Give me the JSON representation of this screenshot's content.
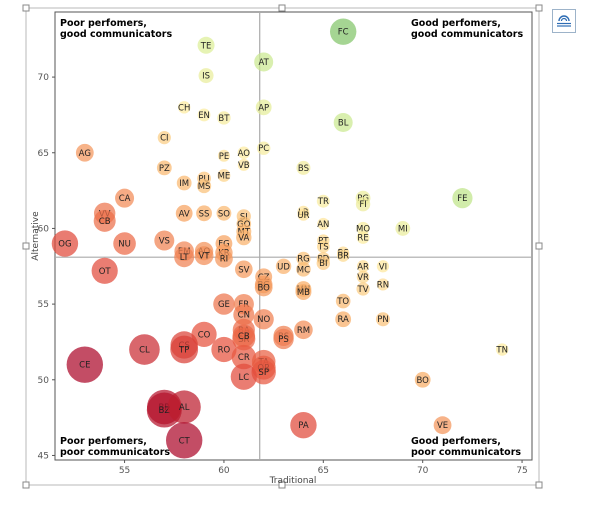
{
  "chart_data": {
    "type": "scatter",
    "xlabel": "Traditional",
    "ylabel": "Alternative",
    "xlim": [
      51.5,
      75.5
    ],
    "ylim": [
      44.7,
      74.3
    ],
    "xticks": [
      "55",
      "60",
      "65",
      "70",
      "75"
    ],
    "yticks": [
      "45",
      "50",
      "55",
      "60",
      "65",
      "70"
    ],
    "divider_x": 61.8,
    "divider_y": 58.1,
    "grid": false,
    "color_scale": "red-yellow-green",
    "quadrant_labels": {
      "top_left": [
        "Poor perfomers,",
        "good communicators"
      ],
      "top_right": [
        "Good perfomers,",
        "good communicators"
      ],
      "bottom_left": [
        "Poor perfomers,",
        "poor communicators"
      ],
      "bottom_right": [
        "Good perfomers,",
        "poor communicators"
      ]
    },
    "points": [
      {
        "label": "TE",
        "x": 59.1,
        "y": 72.1
      },
      {
        "label": "IS",
        "x": 59.1,
        "y": 70.1
      },
      {
        "label": "AT",
        "x": 62.0,
        "y": 71.0
      },
      {
        "label": "FC",
        "x": 66.0,
        "y": 73.0
      },
      {
        "label": "CH",
        "x": 58.0,
        "y": 68.0
      },
      {
        "label": "EN",
        "x": 59.0,
        "y": 67.5
      },
      {
        "label": "BT",
        "x": 60.0,
        "y": 67.3
      },
      {
        "label": "AP",
        "x": 62.0,
        "y": 68.0
      },
      {
        "label": "BL",
        "x": 66.0,
        "y": 67.0
      },
      {
        "label": "AG",
        "x": 53.0,
        "y": 65.0
      },
      {
        "label": "CI",
        "x": 57.0,
        "y": 66.0
      },
      {
        "label": "PE",
        "x": 60.0,
        "y": 64.8
      },
      {
        "label": "AO",
        "x": 61.0,
        "y": 65.0
      },
      {
        "label": "VB",
        "x": 61.0,
        "y": 64.2
      },
      {
        "label": "PC",
        "x": 62.0,
        "y": 65.3
      },
      {
        "label": "PZ",
        "x": 57.0,
        "y": 64.0
      },
      {
        "label": "ME",
        "x": 60.0,
        "y": 63.5
      },
      {
        "label": "IM",
        "x": 58.0,
        "y": 63.0
      },
      {
        "label": "PU",
        "x": 59.0,
        "y": 63.3
      },
      {
        "label": "MS",
        "x": 59.0,
        "y": 62.8
      },
      {
        "label": "BS",
        "x": 64.0,
        "y": 64.0
      },
      {
        "label": "FE",
        "x": 72.0,
        "y": 62.0
      },
      {
        "label": "PG",
        "x": 67.0,
        "y": 62.0
      },
      {
        "label": "FI",
        "x": 67.0,
        "y": 61.6
      },
      {
        "label": "CA",
        "x": 55.0,
        "y": 62.0
      },
      {
        "label": "VV",
        "x": 54.0,
        "y": 61.0
      },
      {
        "label": "CB",
        "x": 54.0,
        "y": 60.5
      },
      {
        "label": "AV",
        "x": 58.0,
        "y": 61.0
      },
      {
        "label": "SS",
        "x": 59.0,
        "y": 61.0
      },
      {
        "label": "SO",
        "x": 60.0,
        "y": 61.0
      },
      {
        "label": "SI",
        "x": 61.0,
        "y": 60.8
      },
      {
        "label": "GO",
        "x": 61.0,
        "y": 60.3
      },
      {
        "label": "TR",
        "x": 65.0,
        "y": 61.8
      },
      {
        "label": "LR",
        "x": 64.0,
        "y": 61.1
      },
      {
        "label": "UR",
        "x": 64.0,
        "y": 60.9
      },
      {
        "label": "MO",
        "x": 67.0,
        "y": 60.0
      },
      {
        "label": "MI",
        "x": 69.0,
        "y": 60.0
      },
      {
        "label": "MT",
        "x": 61.0,
        "y": 59.8
      },
      {
        "label": "OG",
        "x": 52.0,
        "y": 59.0
      },
      {
        "label": "NU",
        "x": 55.0,
        "y": 59.0
      },
      {
        "label": "VS",
        "x": 57.0,
        "y": 59.2
      },
      {
        "label": "FG",
        "x": 60.0,
        "y": 59.0
      },
      {
        "label": "VA",
        "x": 61.0,
        "y": 59.4
      },
      {
        "label": "AN",
        "x": 65.0,
        "y": 60.3
      },
      {
        "label": "RE",
        "x": 67.0,
        "y": 59.4
      },
      {
        "label": "PT",
        "x": 65.0,
        "y": 59.2
      },
      {
        "label": "TS",
        "x": 65.0,
        "y": 58.8
      },
      {
        "label": "EM",
        "x": 58.0,
        "y": 58.5
      },
      {
        "label": "AQ",
        "x": 59.0,
        "y": 58.5
      },
      {
        "label": "KR",
        "x": 60.0,
        "y": 58.4
      },
      {
        "label": "LT",
        "x": 58.0,
        "y": 58.1
      },
      {
        "label": "VT",
        "x": 59.0,
        "y": 58.2
      },
      {
        "label": "RI",
        "x": 60.0,
        "y": 58.0
      },
      {
        "label": "RG",
        "x": 64.0,
        "y": 58.0
      },
      {
        "label": "PD",
        "x": 65.0,
        "y": 58.0
      },
      {
        "label": "BS",
        "x": 66.0,
        "y": 58.4
      },
      {
        "label": "BR",
        "x": 66.0,
        "y": 58.2
      },
      {
        "label": "BI",
        "x": 65.0,
        "y": 57.7
      },
      {
        "label": "OT",
        "x": 54.0,
        "y": 57.2
      },
      {
        "label": "SV",
        "x": 61.0,
        "y": 57.3
      },
      {
        "label": "UD",
        "x": 63.0,
        "y": 57.5
      },
      {
        "label": "MC",
        "x": 64.0,
        "y": 57.3
      },
      {
        "label": "AR",
        "x": 67.0,
        "y": 57.5
      },
      {
        "label": "VI",
        "x": 68.0,
        "y": 57.5
      },
      {
        "label": "CZ",
        "x": 62.0,
        "y": 56.8
      },
      {
        "label": "VR",
        "x": 67.0,
        "y": 56.8
      },
      {
        "label": "RN",
        "x": 68.0,
        "y": 56.3
      },
      {
        "label": "BG",
        "x": 62.0,
        "y": 56.3
      },
      {
        "label": "BO",
        "x": 62.0,
        "y": 56.1
      },
      {
        "label": "TV",
        "x": 67.0,
        "y": 56.0
      },
      {
        "label": "MN",
        "x": 64.0,
        "y": 56.0
      },
      {
        "label": "MB",
        "x": 64.0,
        "y": 55.8
      },
      {
        "label": "TO",
        "x": 66.0,
        "y": 55.2
      },
      {
        "label": "GE",
        "x": 60.0,
        "y": 55.0
      },
      {
        "label": "FR",
        "x": 61.0,
        "y": 55.0
      },
      {
        "label": "CN",
        "x": 61.0,
        "y": 54.3
      },
      {
        "label": "PN",
        "x": 68.0,
        "y": 54.0
      },
      {
        "label": "RA",
        "x": 66.0,
        "y": 54.0
      },
      {
        "label": "NO",
        "x": 62.0,
        "y": 54.0
      },
      {
        "label": "CO",
        "x": 59.0,
        "y": 53.0
      },
      {
        "label": "BA",
        "x": 61.0,
        "y": 53.3
      },
      {
        "label": "SR",
        "x": 61.0,
        "y": 52.7
      },
      {
        "label": "CB",
        "x": 61.0,
        "y": 52.9
      },
      {
        "label": "RM",
        "x": 64.0,
        "y": 53.3
      },
      {
        "label": "BS",
        "x": 63.0,
        "y": 52.9
      },
      {
        "label": "PS",
        "x": 63.0,
        "y": 52.7
      },
      {
        "label": "CL",
        "x": 56.0,
        "y": 52.0
      },
      {
        "label": "CS",
        "x": 58.0,
        "y": 52.3
      },
      {
        "label": "TP",
        "x": 58.0,
        "y": 52.0
      },
      {
        "label": "RO",
        "x": 60.0,
        "y": 52.0
      },
      {
        "label": "TN",
        "x": 74.0,
        "y": 52.0
      },
      {
        "label": "CR",
        "x": 61.0,
        "y": 51.5
      },
      {
        "label": "TA",
        "x": 62.0,
        "y": 51.2
      },
      {
        "label": "OR",
        "x": 62.0,
        "y": 50.8
      },
      {
        "label": "SP",
        "x": 62.0,
        "y": 50.5
      },
      {
        "label": "CE",
        "x": 53.0,
        "y": 51.0
      },
      {
        "label": "LC",
        "x": 61.0,
        "y": 50.2
      },
      {
        "label": "BO",
        "x": 70.0,
        "y": 50.0
      },
      {
        "label": "BR",
        "x": 57.0,
        "y": 48.2
      },
      {
        "label": "BZ",
        "x": 57.0,
        "y": 48.0
      },
      {
        "label": "AL",
        "x": 58.0,
        "y": 48.2
      },
      {
        "label": "VE",
        "x": 71.0,
        "y": 47.0
      },
      {
        "label": "PA",
        "x": 64.0,
        "y": 47.0
      },
      {
        "label": "CT",
        "x": 58.0,
        "y": 46.0
      }
    ]
  }
}
